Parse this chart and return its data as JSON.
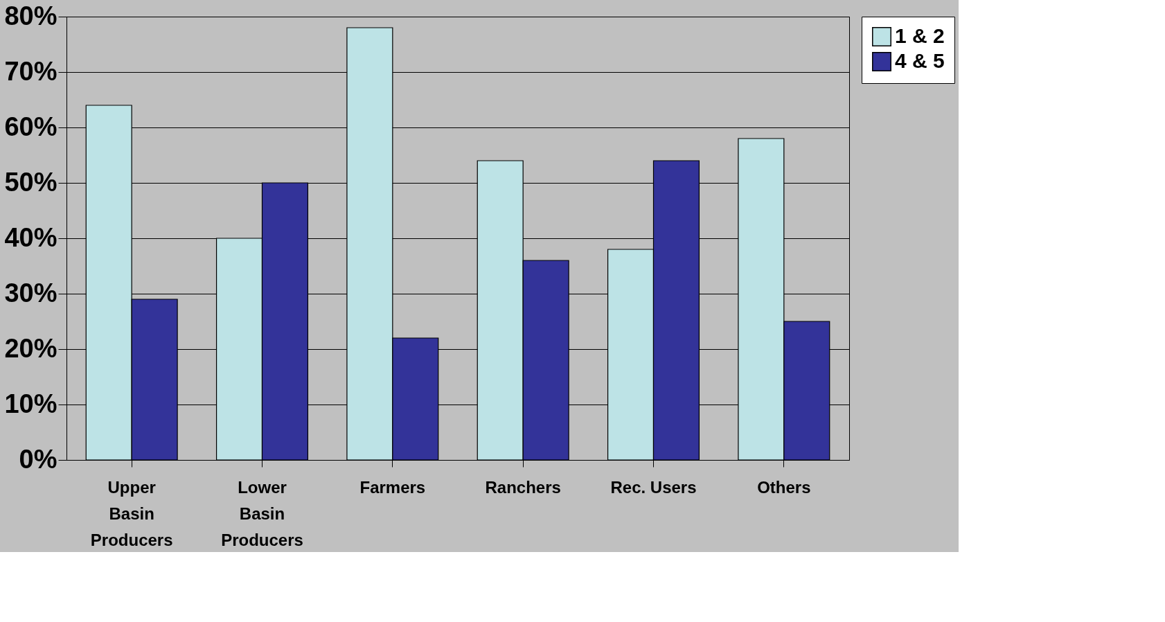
{
  "chart_data": {
    "type": "bar",
    "categories": [
      "Upper Basin Producers",
      "Lower Basin Producers",
      "Farmers",
      "Ranchers",
      "Rec. Users",
      "Others"
    ],
    "series": [
      {
        "name": "1 & 2",
        "color": "#bde3e6",
        "values": [
          64,
          40,
          78,
          54,
          38,
          58
        ]
      },
      {
        "name": "4 & 5",
        "color": "#333399",
        "values": [
          29,
          50,
          22,
          36,
          54,
          25
        ]
      }
    ],
    "ylim": [
      0,
      80
    ],
    "yticks": [
      {
        "value": 0,
        "label": "0%"
      },
      {
        "value": 10,
        "label": "10%"
      },
      {
        "value": 20,
        "label": "20%"
      },
      {
        "value": 30,
        "label": "30%"
      },
      {
        "value": 40,
        "label": "40%"
      },
      {
        "value": 50,
        "label": "50%"
      },
      {
        "value": 60,
        "label": "60%"
      },
      {
        "value": 70,
        "label": "70%"
      },
      {
        "value": 80,
        "label": "80%"
      }
    ],
    "grid": "y",
    "legend": "right"
  }
}
